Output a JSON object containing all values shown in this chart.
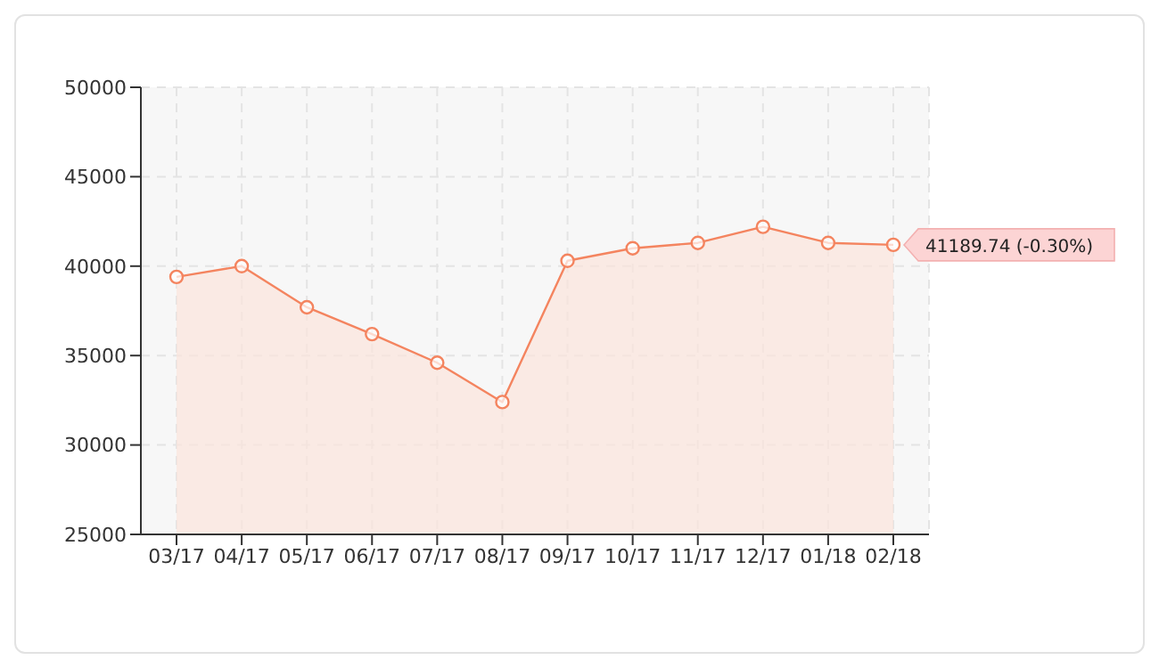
{
  "chart_data": {
    "type": "area",
    "categories": [
      "03/17",
      "04/17",
      "05/17",
      "06/17",
      "07/17",
      "08/17",
      "09/17",
      "10/17",
      "11/17",
      "12/17",
      "01/18",
      "02/18"
    ],
    "series": [
      {
        "color": "#f4845f",
        "values": [
          39400,
          40000,
          37700,
          36200,
          34600,
          32400,
          40300,
          41000,
          41300,
          42200,
          41300,
          41189.74
        ]
      }
    ],
    "ylim": [
      25000,
      50000
    ],
    "yticks": [
      25000,
      30000,
      35000,
      40000,
      45000,
      50000
    ],
    "grid": true,
    "line_style": "solid",
    "marker": "circle",
    "annotations": [
      {
        "text": "41189.74 (-0.30%)",
        "x": "02/18",
        "y": 41189.74
      }
    ]
  }
}
